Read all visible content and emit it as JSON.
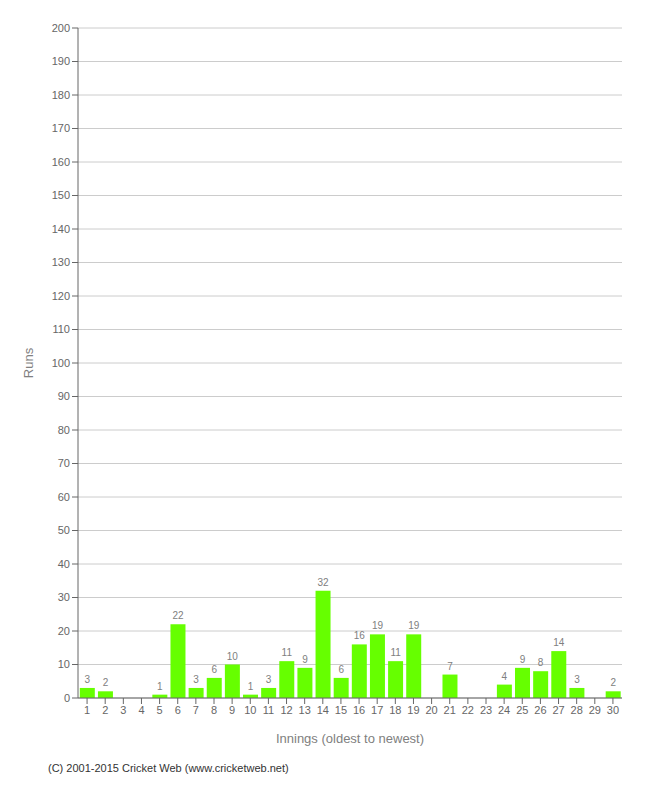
{
  "chart_data": {
    "type": "bar",
    "xlabel": "Innings (oldest to newest)",
    "ylabel": "Runs",
    "categories": [
      "1",
      "2",
      "3",
      "4",
      "5",
      "6",
      "7",
      "8",
      "9",
      "10",
      "11",
      "12",
      "13",
      "14",
      "15",
      "16",
      "17",
      "18",
      "19",
      "20",
      "21",
      "22",
      "23",
      "24",
      "25",
      "26",
      "27",
      "28",
      "29",
      "30"
    ],
    "values": [
      3,
      2,
      0,
      0,
      1,
      22,
      3,
      6,
      10,
      1,
      3,
      11,
      9,
      32,
      6,
      16,
      19,
      11,
      19,
      0,
      7,
      0,
      0,
      4,
      9,
      8,
      14,
      3,
      0,
      2
    ],
    "color": "#66ff00",
    "ylim": [
      0,
      200
    ],
    "yticks": [
      0,
      10,
      20,
      30,
      40,
      50,
      60,
      70,
      80,
      90,
      100,
      110,
      120,
      130,
      140,
      150,
      160,
      170,
      180,
      190,
      200
    ],
    "grid": true,
    "data_labels": true,
    "annotations": [
      "(C) 2001-2015 Cricket Web (www.cricketweb.net)"
    ]
  }
}
